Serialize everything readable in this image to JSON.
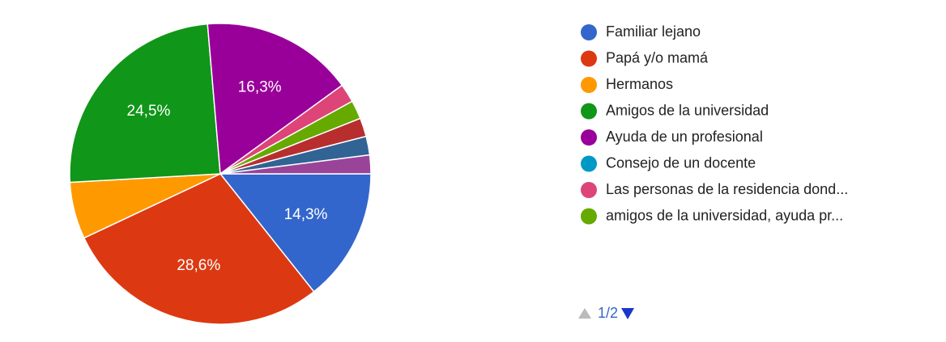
{
  "chart_data": {
    "type": "pie",
    "categories": [
      "Familiar lejano",
      "Papá y/o mamá",
      "Hermanos",
      "Amigos de la universidad",
      "Ayuda de un profesional",
      "Consejo de un docente",
      "Las personas de la residencia dond...",
      "amigos de la universidad, ayuda pr...",
      null,
      null,
      null
    ],
    "values": [
      14.3,
      28.6,
      6.1,
      24.5,
      16.3,
      0,
      2,
      2,
      2,
      2,
      2
    ],
    "value_labels": [
      "14,3%",
      "28,6%",
      null,
      "24,5%",
      "16,3%",
      null,
      null,
      null,
      null,
      null,
      null
    ],
    "colors": [
      "#3366cc",
      "#dc3912",
      "#ff9900",
      "#109618",
      "#990099",
      "#0099c6",
      "#dd4477",
      "#66aa00",
      "#b82e2e",
      "#316395",
      "#994499"
    ],
    "legend_page": "1/2"
  }
}
